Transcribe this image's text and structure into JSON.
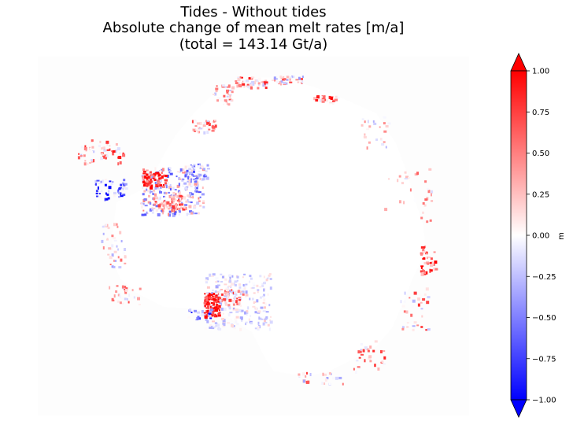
{
  "chart_data": {
    "type": "heatmap",
    "title": [
      "Tides - Without tides",
      "Absolute change of mean melt rates [m/a]",
      "(total = 143.14 Gt/a)"
    ],
    "colorbar": {
      "label": "m",
      "colormap": "bwr",
      "vmin": -1.0,
      "vmax": 1.0,
      "extend": "both",
      "ticks": [
        1.0,
        0.75,
        0.5,
        0.25,
        0.0,
        -0.25,
        -0.5,
        -0.75,
        -1.0
      ],
      "tick_labels": [
        "1.00",
        "0.75",
        "0.50",
        "0.25",
        "0.00",
        "−0.25",
        "−0.50",
        "−0.75",
        "−1.00"
      ]
    },
    "colors": {
      "positive": "#ff0000",
      "negative": "#0000ff",
      "zero": "#ffffff"
    }
  }
}
